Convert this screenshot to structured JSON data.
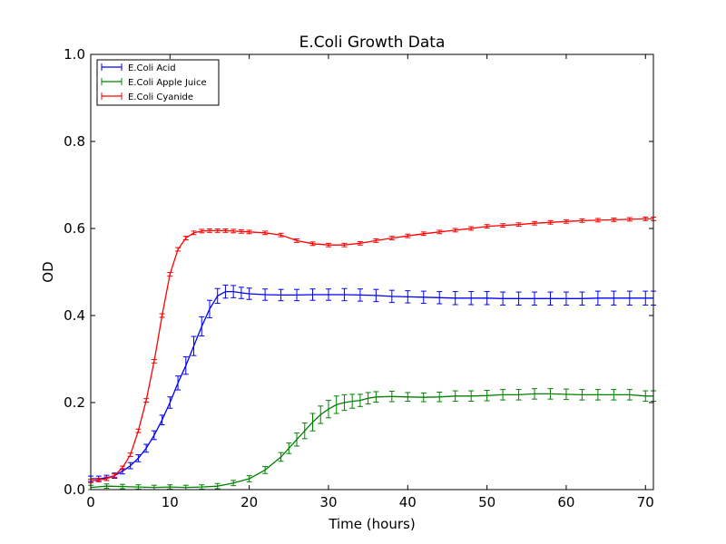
{
  "chart_data": {
    "type": "line",
    "title": "E.Coli Growth Data",
    "xlabel": "Time (hours)",
    "ylabel": "OD",
    "xlim": [
      0,
      71
    ],
    "ylim": [
      0,
      1.0
    ],
    "xticks": [
      0,
      10,
      20,
      30,
      40,
      50,
      60,
      70
    ],
    "xtick_labels": [
      "0",
      "10",
      "20",
      "30",
      "40",
      "50",
      "60",
      "70"
    ],
    "yticks": [
      0,
      0.2,
      0.4,
      0.6,
      0.8,
      1.0
    ],
    "ytick_labels": [
      "0.0",
      "0.2",
      "0.4",
      "0.6",
      "0.8",
      "1.0"
    ],
    "grid": false,
    "legend_position": "top-left",
    "series": [
      {
        "name": "E.Coli Acid",
        "color": "#0000ff",
        "x": [
          0,
          1,
          2,
          3,
          4,
          5,
          6,
          7,
          8,
          9,
          10,
          11,
          12,
          13,
          14,
          15,
          16,
          17,
          18,
          19,
          20,
          22,
          24,
          26,
          28,
          30,
          32,
          34,
          36,
          38,
          40,
          42,
          44,
          46,
          48,
          50,
          52,
          54,
          56,
          58,
          60,
          62,
          64,
          66,
          68,
          70,
          71
        ],
        "y": [
          0.025,
          0.025,
          0.027,
          0.032,
          0.042,
          0.055,
          0.072,
          0.095,
          0.125,
          0.16,
          0.2,
          0.245,
          0.285,
          0.33,
          0.375,
          0.415,
          0.445,
          0.455,
          0.455,
          0.452,
          0.45,
          0.448,
          0.447,
          0.447,
          0.448,
          0.448,
          0.448,
          0.447,
          0.446,
          0.444,
          0.443,
          0.442,
          0.441,
          0.44,
          0.44,
          0.44,
          0.439,
          0.439,
          0.439,
          0.439,
          0.439,
          0.439,
          0.44,
          0.44,
          0.44,
          0.44,
          0.44
        ],
        "err": [
          0.006,
          0.006,
          0.006,
          0.006,
          0.006,
          0.007,
          0.008,
          0.009,
          0.01,
          0.011,
          0.013,
          0.016,
          0.02,
          0.022,
          0.022,
          0.02,
          0.017,
          0.015,
          0.014,
          0.013,
          0.013,
          0.013,
          0.013,
          0.013,
          0.013,
          0.013,
          0.014,
          0.014,
          0.014,
          0.014,
          0.014,
          0.014,
          0.014,
          0.015,
          0.015,
          0.015,
          0.015,
          0.015,
          0.015,
          0.015,
          0.015,
          0.015,
          0.016,
          0.016,
          0.016,
          0.016,
          0.016
        ]
      },
      {
        "name": "E.Coli Apple Juice",
        "color": "#008000",
        "x": [
          0,
          2,
          4,
          6,
          8,
          10,
          12,
          14,
          16,
          18,
          20,
          22,
          24,
          25,
          26,
          27,
          28,
          29,
          30,
          31,
          32,
          33,
          34,
          35,
          36,
          38,
          40,
          42,
          44,
          46,
          48,
          50,
          52,
          54,
          56,
          58,
          60,
          62,
          64,
          66,
          68,
          70,
          71
        ],
        "y": [
          0.005,
          0.008,
          0.007,
          0.006,
          0.005,
          0.006,
          0.005,
          0.006,
          0.008,
          0.015,
          0.025,
          0.045,
          0.075,
          0.095,
          0.115,
          0.135,
          0.155,
          0.172,
          0.185,
          0.195,
          0.2,
          0.203,
          0.205,
          0.21,
          0.213,
          0.214,
          0.213,
          0.212,
          0.213,
          0.215,
          0.215,
          0.216,
          0.218,
          0.218,
          0.22,
          0.22,
          0.219,
          0.218,
          0.218,
          0.218,
          0.218,
          0.215,
          0.215
        ],
        "err": [
          0.005,
          0.005,
          0.005,
          0.005,
          0.005,
          0.005,
          0.005,
          0.005,
          0.006,
          0.006,
          0.007,
          0.008,
          0.01,
          0.012,
          0.015,
          0.018,
          0.02,
          0.02,
          0.02,
          0.02,
          0.018,
          0.016,
          0.014,
          0.013,
          0.012,
          0.012,
          0.01,
          0.01,
          0.011,
          0.012,
          0.012,
          0.012,
          0.012,
          0.012,
          0.012,
          0.012,
          0.012,
          0.012,
          0.012,
          0.012,
          0.012,
          0.012,
          0.012
        ]
      },
      {
        "name": "E.Coli Cyanide",
        "color": "#ff0000",
        "x": [
          0,
          1,
          2,
          3,
          4,
          5,
          6,
          7,
          8,
          9,
          10,
          11,
          12,
          13,
          14,
          15,
          16,
          17,
          18,
          19,
          20,
          22,
          24,
          26,
          28,
          30,
          32,
          34,
          36,
          38,
          40,
          42,
          44,
          46,
          48,
          50,
          52,
          54,
          56,
          58,
          60,
          62,
          64,
          66,
          68,
          70,
          71
        ],
        "y": [
          0.02,
          0.022,
          0.025,
          0.032,
          0.05,
          0.08,
          0.135,
          0.205,
          0.295,
          0.4,
          0.495,
          0.552,
          0.578,
          0.59,
          0.594,
          0.595,
          0.595,
          0.595,
          0.594,
          0.593,
          0.592,
          0.59,
          0.585,
          0.572,
          0.565,
          0.562,
          0.562,
          0.566,
          0.572,
          0.578,
          0.583,
          0.588,
          0.592,
          0.596,
          0.6,
          0.605,
          0.607,
          0.609,
          0.612,
          0.614,
          0.616,
          0.618,
          0.619,
          0.62,
          0.621,
          0.622,
          0.622
        ],
        "err": [
          0.004,
          0.004,
          0.004,
          0.004,
          0.004,
          0.004,
          0.004,
          0.004,
          0.004,
          0.004,
          0.004,
          0.004,
          0.004,
          0.004,
          0.004,
          0.004,
          0.004,
          0.004,
          0.004,
          0.004,
          0.004,
          0.004,
          0.004,
          0.004,
          0.004,
          0.004,
          0.004,
          0.004,
          0.004,
          0.004,
          0.004,
          0.004,
          0.004,
          0.004,
          0.004,
          0.004,
          0.004,
          0.004,
          0.004,
          0.004,
          0.004,
          0.004,
          0.004,
          0.004,
          0.004,
          0.004,
          0.004
        ]
      }
    ]
  }
}
